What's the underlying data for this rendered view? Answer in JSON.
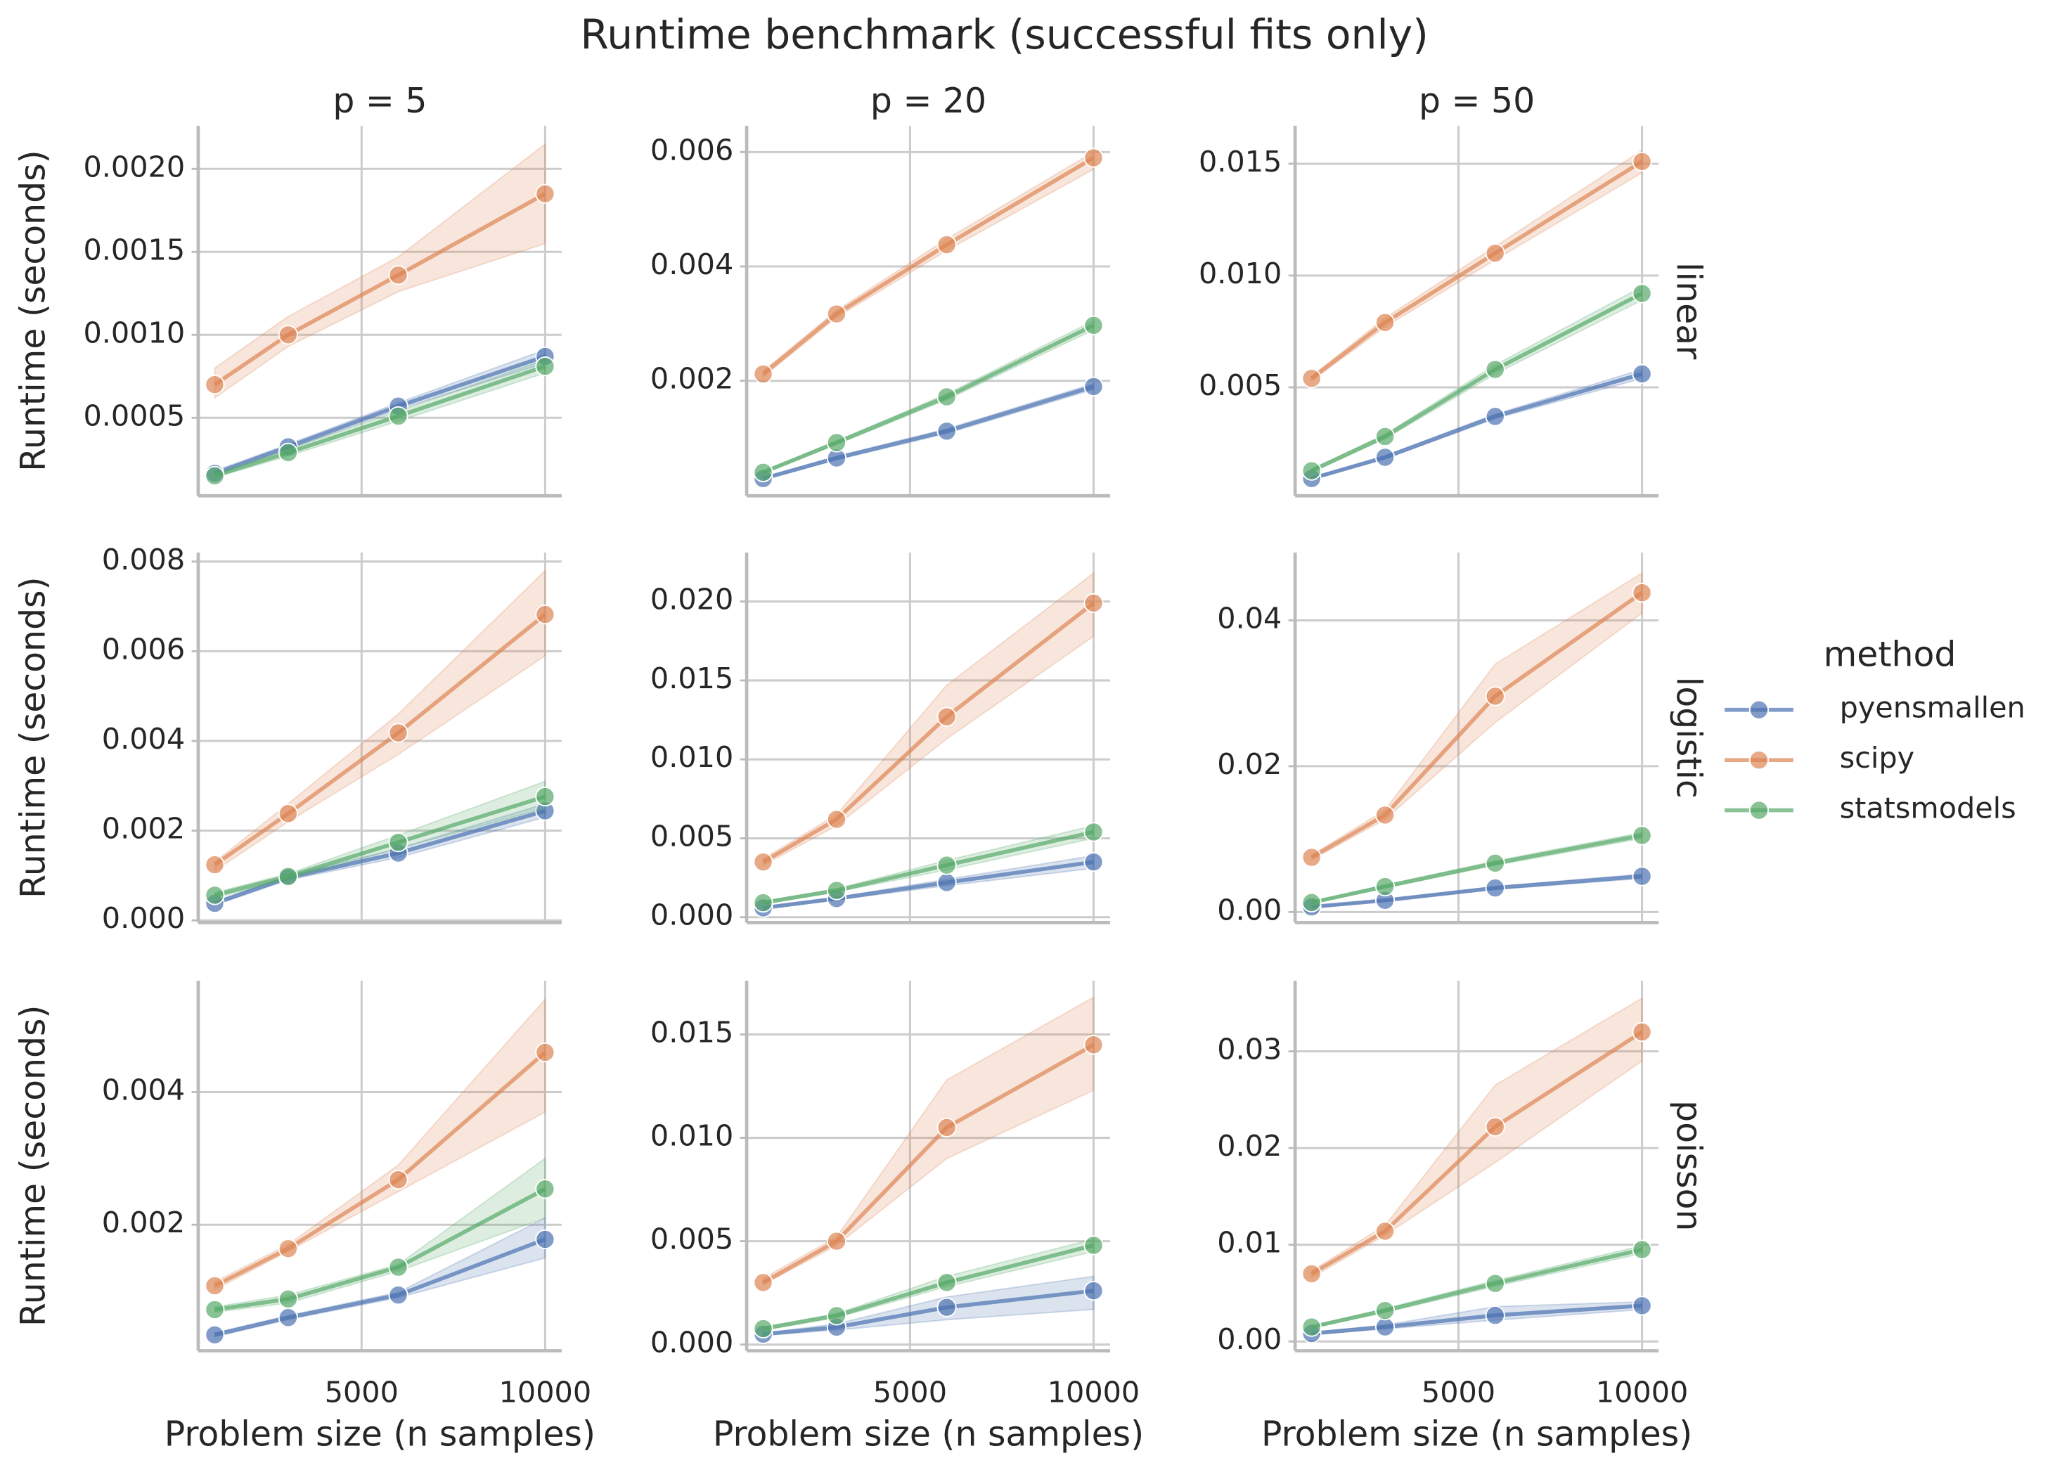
{
  "chart_data": {
    "type": "line",
    "title": "Runtime benchmark (successful fits only)",
    "xlabel": "Problem size (n samples)",
    "ylabel": "Runtime (seconds)",
    "legend_title": "method",
    "legend": "right",
    "grid": true,
    "col_labels": [
      "p = 5",
      "p = 20",
      "p = 50"
    ],
    "row_labels": [
      "linear",
      "logistic",
      "poisson"
    ],
    "x": [
      1000,
      3000,
      6000,
      10000
    ],
    "xlim": [
      550,
      10450
    ],
    "xticks": [
      5000,
      10000
    ],
    "series": [
      {
        "name": "pyensmallen",
        "color": "#4c72b0"
      },
      {
        "name": "scipy",
        "color": "#dd8452"
      },
      {
        "name": "statsmodels",
        "color": "#55a868"
      }
    ],
    "panels": [
      {
        "ylim": [
          3e-05,
          0.00226
        ],
        "yticks": [
          0.0005,
          {
            "value": 0.001,
            "label": "0.0010"
          },
          0.0015,
          {
            "value": 0.002,
            "label": "0.0020"
          }
        ],
        "values": [
          [
            0.000165,
            0.000325,
            0.00057,
            0.00087
          ],
          [
            0.0007,
            0.001,
            0.00136,
            0.00185
          ],
          [
            0.00015,
            0.00029,
            0.00051,
            0.00081
          ]
        ],
        "lower": [
          [
            0.00015,
            0.00031,
            0.00055,
            0.00083
          ],
          [
            0.00062,
            0.00093,
            0.00126,
            0.00155
          ],
          [
            0.00014,
            0.00027,
            0.00048,
            0.00077
          ]
        ],
        "upper": [
          [
            0.00018,
            0.00034,
            0.00059,
            0.00091
          ],
          [
            0.0008,
            0.00111,
            0.00147,
            0.00215
          ],
          [
            0.00016,
            0.00031,
            0.00054,
            0.00085
          ]
        ]
      },
      {
        "ylim": [
          -1e-05,
          0.00646
        ],
        "yticks": [
          0.002,
          0.004,
          0.006
        ],
        "values": [
          [
            0.00029,
            0.00065,
            0.00112,
            0.0019
          ],
          [
            0.00212,
            0.00317,
            0.00438,
            0.0059
          ],
          [
            0.0004,
            0.00092,
            0.00172,
            0.00297
          ]
        ],
        "lower": [
          [
            0.00027,
            0.00062,
            0.00108,
            0.00185
          ],
          [
            0.00207,
            0.00311,
            0.00428,
            0.0057
          ],
          [
            0.00038,
            0.00089,
            0.00167,
            0.00289
          ]
        ],
        "upper": [
          [
            0.00031,
            0.00068,
            0.00116,
            0.00195
          ],
          [
            0.00217,
            0.00323,
            0.00448,
            0.006
          ],
          [
            0.00042,
            0.00095,
            0.00177,
            0.00305
          ]
        ]
      },
      {
        "ylim": [
          0.00015,
          0.0167
        ],
        "yticks": [
          0.005,
          {
            "value": 0.01,
            "label": "0.010"
          },
          0.015
        ],
        "values": [
          [
            0.00092,
            0.00187,
            0.0037,
            0.0056
          ],
          [
            0.0054,
            0.0079,
            0.011,
            0.0151
          ],
          [
            0.00127,
            0.0028,
            0.0058,
            0.0092
          ]
        ],
        "lower": [
          [
            0.00088,
            0.0018,
            0.0036,
            0.0054
          ],
          [
            0.0053,
            0.0077,
            0.0107,
            0.0146
          ],
          [
            0.0012,
            0.0027,
            0.0056,
            0.0089
          ]
        ],
        "upper": [
          [
            0.00096,
            0.00194,
            0.0038,
            0.0058
          ],
          [
            0.0055,
            0.0081,
            0.0113,
            0.0156
          ],
          [
            0.00134,
            0.0029,
            0.006,
            0.0095
          ]
        ]
      },
      {
        "ylim": [
          -5e-05,
          0.0082
        ],
        "yticks": [
          {
            "value": 0,
            "label": "0.000"
          },
          0.002,
          0.004,
          0.006,
          0.008
        ],
        "values": [
          [
            0.00038,
            0.00095,
            0.0015,
            0.00244
          ],
          [
            0.00124,
            0.00238,
            0.00418,
            0.00682
          ],
          [
            0.00056,
            0.00098,
            0.00174,
            0.00276
          ]
        ],
        "lower": [
          [
            0.00034,
            0.0009,
            0.0014,
            0.0023
          ],
          [
            0.0011,
            0.0022,
            0.0037,
            0.0059
          ],
          [
            0.0005,
            0.00092,
            0.0016,
            0.0025
          ]
        ],
        "upper": [
          [
            0.00042,
            0.001,
            0.0016,
            0.0026
          ],
          [
            0.0013,
            0.0026,
            0.0046,
            0.0078
          ],
          [
            0.00062,
            0.00104,
            0.0019,
            0.0031
          ]
        ]
      },
      {
        "ylim": [
          -0.00034,
          0.0231
        ],
        "yticks": [
          {
            "value": 0,
            "label": "0.000"
          },
          0.005,
          {
            "value": 0.01,
            "label": "0.010"
          },
          0.015,
          {
            "value": 0.02,
            "label": "0.020"
          }
        ],
        "values": [
          [
            0.00059,
            0.00118,
            0.0022,
            0.0035
          ],
          [
            0.0035,
            0.0062,
            0.0127,
            0.0199
          ],
          [
            0.00092,
            0.0017,
            0.0033,
            0.0054
          ]
        ],
        "lower": [
          [
            0.00052,
            0.0011,
            0.002,
            0.0031
          ],
          [
            0.0033,
            0.0058,
            0.0113,
            0.0178
          ],
          [
            0.00085,
            0.0016,
            0.003,
            0.005
          ]
        ],
        "upper": [
          [
            0.00066,
            0.00126,
            0.0024,
            0.0039
          ],
          [
            0.0037,
            0.0065,
            0.0147,
            0.0218
          ],
          [
            0.001,
            0.0018,
            0.0036,
            0.0058
          ]
        ]
      },
      {
        "ylim": [
          -0.00145,
          0.0493
        ],
        "yticks": [
          {
            "value": 0,
            "label": "0.00"
          },
          0.02,
          0.04
        ],
        "values": [
          [
            0.0007,
            0.0016,
            0.0033,
            0.0049
          ],
          [
            0.0075,
            0.0133,
            0.0296,
            0.0438
          ],
          [
            0.0013,
            0.0035,
            0.0067,
            0.0105
          ]
        ],
        "lower": [
          [
            0.0006,
            0.0015,
            0.0031,
            0.0046
          ],
          [
            0.0072,
            0.0127,
            0.026,
            0.041
          ],
          [
            0.0012,
            0.0033,
            0.0064,
            0.0101
          ]
        ],
        "upper": [
          [
            0.0008,
            0.0017,
            0.0035,
            0.0052
          ],
          [
            0.0078,
            0.014,
            0.034,
            0.0465
          ],
          [
            0.0014,
            0.0037,
            0.007,
            0.0109
          ]
        ]
      },
      {
        "ylim": [
          0.0001,
          0.00568
        ],
        "yticks": [
          0.002,
          0.004
        ],
        "values": [
          [
            0.00034,
            0.0006,
            0.00094,
            0.00178
          ],
          [
            0.00108,
            0.00164,
            0.00268,
            0.0046
          ],
          [
            0.00072,
            0.00088,
            0.00136,
            0.00254
          ]
        ],
        "lower": [
          [
            0.00031,
            0.00057,
            0.0009,
            0.0015
          ],
          [
            0.00102,
            0.0016,
            0.0025,
            0.0037
          ],
          [
            0.00068,
            0.00082,
            0.0013,
            0.0021
          ]
        ],
        "upper": [
          [
            0.00037,
            0.00063,
            0.00098,
            0.0021
          ],
          [
            0.00114,
            0.0017,
            0.0029,
            0.0054
          ],
          [
            0.00076,
            0.00094,
            0.0014,
            0.003
          ]
        ]
      },
      {
        "ylim": [
          -0.0003,
          0.0176
        ],
        "yticks": [
          {
            "value": 0,
            "label": "0.000"
          },
          0.005,
          {
            "value": 0.01,
            "label": "0.010"
          },
          0.015
        ],
        "values": [
          [
            0.0005,
            0.00084,
            0.0018,
            0.0026
          ],
          [
            0.003,
            0.005,
            0.0105,
            0.0145
          ],
          [
            0.00077,
            0.0014,
            0.003,
            0.0048
          ]
        ],
        "lower": [
          [
            0.00045,
            0.0007,
            0.0012,
            0.0017
          ],
          [
            0.0029,
            0.0048,
            0.009,
            0.0123
          ],
          [
            0.0007,
            0.0013,
            0.0028,
            0.0045
          ]
        ],
        "upper": [
          [
            0.00055,
            0.001,
            0.0023,
            0.0033
          ],
          [
            0.0032,
            0.0052,
            0.0128,
            0.0168
          ],
          [
            0.00084,
            0.0015,
            0.0033,
            0.0051
          ]
        ]
      },
      {
        "ylim": [
          -0.00096,
          0.0373
        ],
        "yticks": [
          {
            "value": 0,
            "label": "0.00"
          },
          0.01,
          0.02,
          0.03
        ],
        "values": [
          [
            0.00082,
            0.0015,
            0.0027,
            0.0037
          ],
          [
            0.007,
            0.0114,
            0.0222,
            0.032
          ],
          [
            0.0015,
            0.0032,
            0.006,
            0.0095
          ]
        ],
        "lower": [
          [
            0.0007,
            0.0013,
            0.0022,
            0.0033
          ],
          [
            0.0066,
            0.011,
            0.0185,
            0.029
          ],
          [
            0.0014,
            0.003,
            0.0057,
            0.0091
          ]
        ],
        "upper": [
          [
            0.00094,
            0.0017,
            0.0036,
            0.0041
          ],
          [
            0.0073,
            0.012,
            0.0265,
            0.0355
          ],
          [
            0.0016,
            0.0034,
            0.0063,
            0.0099
          ]
        ]
      }
    ]
  }
}
